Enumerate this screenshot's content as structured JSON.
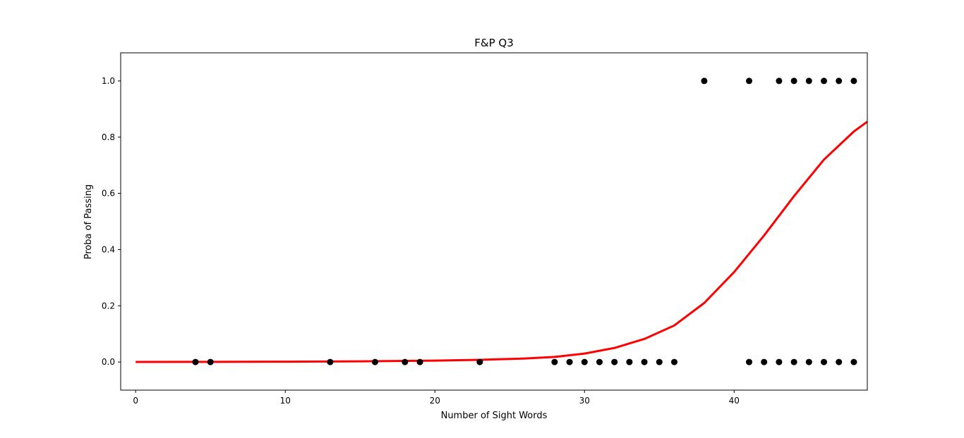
{
  "chart_data": {
    "type": "scatter",
    "title": "F&P Q3",
    "xlabel": "Number of Sight Words",
    "ylabel": "Proba of Passing",
    "xlim": [
      -1,
      48.9
    ],
    "ylim": [
      -0.1,
      1.1
    ],
    "xticks": [
      "0",
      "10",
      "20",
      "30",
      "40"
    ],
    "yticks": [
      "0.0",
      "0.2",
      "0.4",
      "0.6",
      "0.8",
      "1.0"
    ],
    "xtick_values": [
      0,
      10,
      20,
      30,
      40
    ],
    "ytick_values": [
      0.0,
      0.2,
      0.4,
      0.6,
      0.8,
      1.0
    ],
    "grid": false,
    "marker_color": "#000000",
    "curve_color": "#ff0000",
    "series": [
      {
        "type": "scatter",
        "points": [
          [
            4,
            0
          ],
          [
            5,
            0
          ],
          [
            13,
            0
          ],
          [
            16,
            0
          ],
          [
            18,
            0
          ],
          [
            19,
            0
          ],
          [
            23,
            0
          ],
          [
            28,
            0
          ],
          [
            29,
            0
          ],
          [
            30,
            0
          ],
          [
            31,
            0
          ],
          [
            32,
            0
          ],
          [
            33,
            0
          ],
          [
            34,
            0
          ],
          [
            35,
            0
          ],
          [
            36,
            0
          ],
          [
            41,
            0
          ],
          [
            42,
            0
          ],
          [
            43,
            0
          ],
          [
            44,
            0
          ],
          [
            45,
            0
          ],
          [
            46,
            0
          ],
          [
            47,
            0
          ],
          [
            48,
            0
          ],
          [
            38,
            1
          ],
          [
            41,
            1
          ],
          [
            43,
            1
          ],
          [
            44,
            1
          ],
          [
            45,
            1
          ],
          [
            46,
            1
          ],
          [
            47,
            1
          ],
          [
            48,
            1
          ]
        ]
      },
      {
        "type": "line",
        "curve": [
          [
            0,
            0.0002
          ],
          [
            5,
            0.0005
          ],
          [
            10,
            0.0012
          ],
          [
            15,
            0.0024
          ],
          [
            20,
            0.005
          ],
          [
            23,
            0.0078
          ],
          [
            26,
            0.0125
          ],
          [
            28,
            0.018
          ],
          [
            30,
            0.03
          ],
          [
            32,
            0.05
          ],
          [
            34,
            0.082
          ],
          [
            36,
            0.13
          ],
          [
            38,
            0.21
          ],
          [
            40,
            0.32
          ],
          [
            42,
            0.45
          ],
          [
            44,
            0.59
          ],
          [
            46,
            0.72
          ],
          [
            48,
            0.82
          ],
          [
            48.9,
            0.855
          ]
        ]
      }
    ]
  }
}
